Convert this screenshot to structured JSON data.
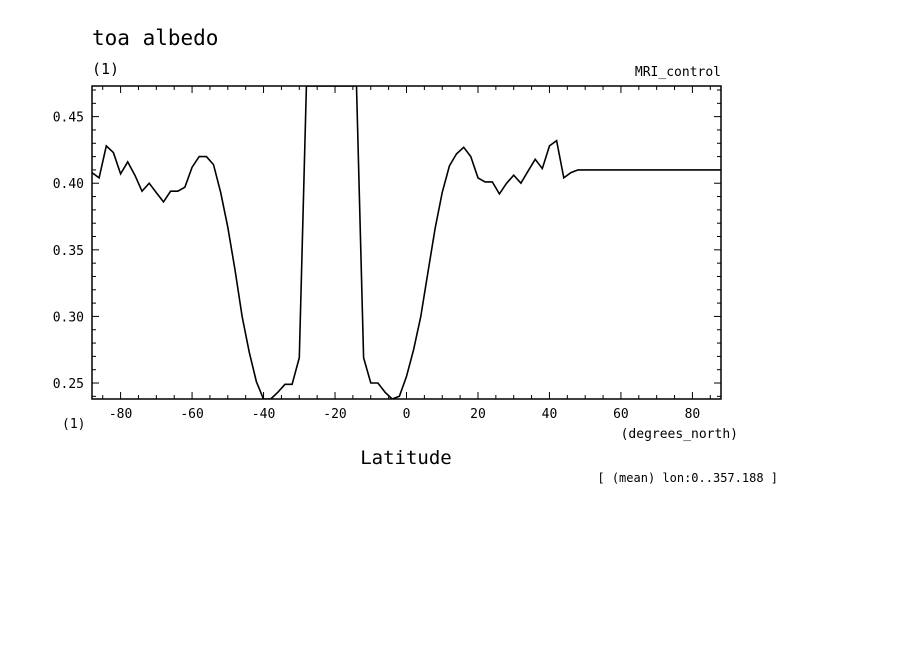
{
  "chart_data": {
    "type": "line",
    "title": "toa albedo",
    "units": "(1)",
    "dataset": "MRI_control",
    "xlabel": "Latitude",
    "xunits": "(degrees_north)",
    "ylabel_units": "(1)",
    "subset_note": "[ (mean) lon:0..357.188 ]",
    "xlim": [
      -88,
      88
    ],
    "ylim": [
      0.238,
      0.473
    ],
    "x_ticks": [
      -80,
      -60,
      -40,
      -20,
      0,
      20,
      40,
      60,
      80
    ],
    "x_tick_labels": [
      "-80",
      "-60",
      "-40",
      "-20",
      "0",
      "20",
      "40",
      "60",
      "80"
    ],
    "y_ticks": [
      0.25,
      0.3,
      0.35,
      0.4,
      0.45
    ],
    "y_tick_labels": [
      "0.25",
      "0.30",
      "0.35",
      "0.40",
      "0.45"
    ],
    "grid": false,
    "series": [
      {
        "x": [
          -88,
          -86,
          -84,
          -82,
          -80,
          -78,
          -76,
          -74,
          -72,
          -70,
          -68,
          -66,
          -64,
          -62,
          -60,
          -58,
          -56,
          -54,
          -52,
          -50,
          -48,
          -46,
          -44,
          -42,
          -40,
          -38,
          -36,
          -34,
          -32,
          -30,
          -28,
          -26,
          -24,
          -22,
          -20,
          -18,
          -16,
          -14,
          -12,
          -10,
          -8,
          -6,
          -4,
          -2,
          0,
          2,
          4,
          6,
          8,
          10,
          12,
          14,
          16,
          18,
          20,
          22,
          24,
          26,
          28,
          30,
          32,
          34,
          36,
          38,
          40,
          42,
          44,
          46,
          48,
          50,
          52,
          54,
          56,
          58,
          60,
          62,
          64,
          66,
          68,
          70,
          72,
          74,
          76,
          78,
          80,
          82,
          84,
          86,
          88
        ],
        "values": [
          0.408,
          0.404,
          0.428,
          0.423,
          0.407,
          0.416,
          0.406,
          0.394,
          0.4,
          0.393,
          0.386,
          0.394,
          0.394,
          0.397,
          0.412,
          0.42,
          0.42,
          0.414,
          0.393,
          0.367,
          0.335,
          0.3,
          0.273,
          0.251,
          0.238,
          0.238,
          0.243,
          0.249,
          0.249,
          0.269,
          0.473,
          0.473,
          0.473,
          0.473,
          0.473,
          0.473,
          0.473,
          0.473,
          0.269,
          0.25,
          0.25,
          0.243,
          0.238,
          0.24,
          0.255,
          0.275,
          0.3,
          0.333,
          0.366,
          0.393,
          0.413,
          0.422,
          0.427,
          0.42,
          0.404,
          0.401,
          0.401,
          0.392,
          0.4,
          0.406,
          0.4,
          0.409,
          0.418,
          0.411,
          0.428,
          0.432,
          0.404,
          0.408,
          0.41,
          0.41,
          0.41,
          0.41,
          0.41,
          0.41,
          0.41,
          0.41,
          0.41,
          0.41,
          0.41,
          0.41,
          0.41,
          0.41,
          0.41,
          0.41,
          0.41,
          0.41,
          0.41,
          0.41,
          0.41
        ]
      }
    ]
  }
}
